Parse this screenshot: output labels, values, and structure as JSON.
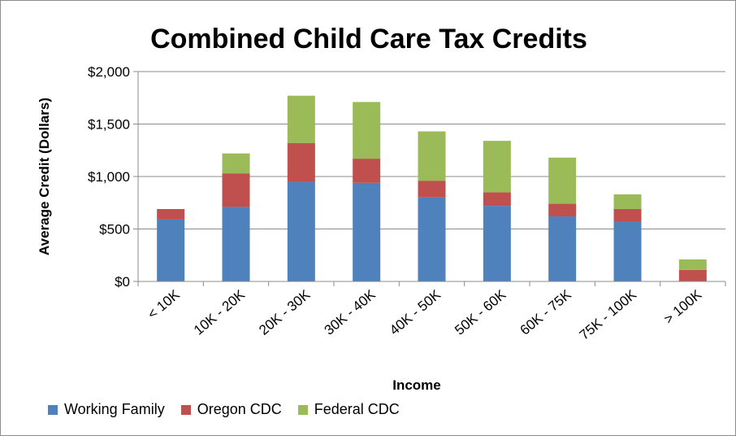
{
  "chart_data": {
    "type": "bar",
    "stacked": true,
    "title": "Combined Child Care Tax Credits",
    "xlabel": "Income",
    "ylabel": "Average Credit (Dollars)",
    "ylim": [
      0,
      2000
    ],
    "yticks": [
      0,
      500,
      1000,
      1500,
      2000
    ],
    "ytick_labels": [
      "$0",
      "$500",
      "$1,000",
      "$1,500",
      "$2,000"
    ],
    "grid": true,
    "legend_position": "bottom",
    "categories": [
      "< 10K",
      "10K - 20K",
      "20K - 30K",
      "30K - 40K",
      "40K - 50K",
      "50K - 60K",
      "60K - 75K",
      "75K - 100K",
      "> 100K"
    ],
    "series": [
      {
        "name": "Working Family",
        "color": "#4f81bd",
        "values": [
          590,
          710,
          950,
          940,
          800,
          720,
          620,
          570,
          0
        ]
      },
      {
        "name": "Oregon CDC",
        "color": "#c0504d",
        "values": [
          100,
          320,
          370,
          230,
          160,
          130,
          120,
          120,
          110
        ]
      },
      {
        "name": "Federal CDC",
        "color": "#9bbb59",
        "values": [
          0,
          190,
          450,
          540,
          470,
          490,
          440,
          140,
          100
        ]
      }
    ]
  }
}
